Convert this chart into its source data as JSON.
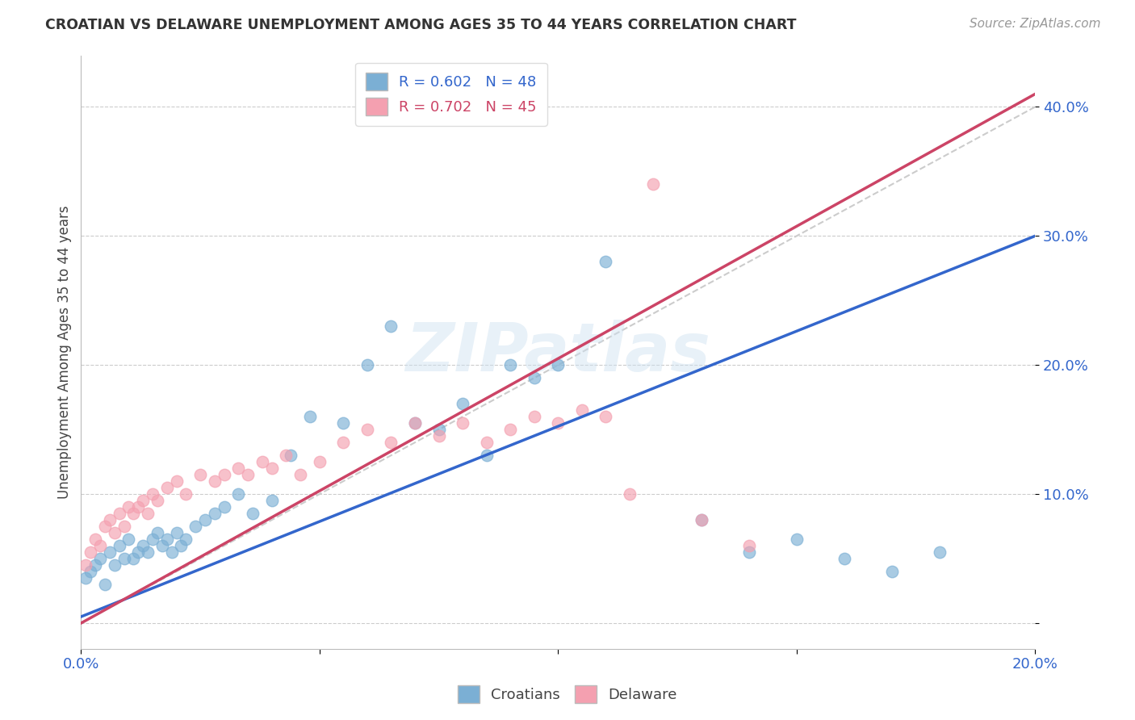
{
  "title": "CROATIAN VS DELAWARE UNEMPLOYMENT AMONG AGES 35 TO 44 YEARS CORRELATION CHART",
  "source": "Source: ZipAtlas.com",
  "ylabel": "Unemployment Among Ages 35 to 44 years",
  "xlim": [
    0.0,
    0.2
  ],
  "ylim": [
    -0.02,
    0.44
  ],
  "xticks": [
    0.0,
    0.05,
    0.1,
    0.15,
    0.2
  ],
  "yticks": [
    0.0,
    0.1,
    0.2,
    0.3,
    0.4
  ],
  "xtick_labels": [
    "0.0%",
    "",
    "",
    "",
    "20.0%"
  ],
  "ytick_labels": [
    "",
    "10.0%",
    "20.0%",
    "30.0%",
    "40.0%"
  ],
  "croatians_color": "#7bafd4",
  "delaware_color": "#f4a0b0",
  "croatians_line_color": "#3366cc",
  "delaware_line_color": "#cc4466",
  "legend_label_1": "R = 0.602   N = 48",
  "legend_label_2": "R = 0.702   N = 45",
  "legend_text_color_1": "#3366cc",
  "legend_text_color_2": "#cc4466",
  "watermark": "ZIPatlas",
  "trendline_cr_x0": 0.0,
  "trendline_cr_y0": 0.005,
  "trendline_cr_x1": 0.2,
  "trendline_cr_y1": 0.3,
  "trendline_de_x0": 0.0,
  "trendline_de_y0": 0.0,
  "trendline_de_x1": 0.2,
  "trendline_de_y1": 0.41,
  "background_color": "#ffffff",
  "grid_color": "#cccccc",
  "cr_x": [
    0.001,
    0.002,
    0.003,
    0.004,
    0.005,
    0.006,
    0.007,
    0.008,
    0.009,
    0.01,
    0.011,
    0.012,
    0.013,
    0.014,
    0.015,
    0.016,
    0.017,
    0.018,
    0.019,
    0.02,
    0.021,
    0.022,
    0.024,
    0.026,
    0.028,
    0.03,
    0.033,
    0.036,
    0.04,
    0.044,
    0.048,
    0.055,
    0.06,
    0.065,
    0.07,
    0.075,
    0.08,
    0.085,
    0.09,
    0.095,
    0.1,
    0.11,
    0.13,
    0.14,
    0.15,
    0.16,
    0.17,
    0.18
  ],
  "cr_y": [
    0.035,
    0.04,
    0.045,
    0.05,
    0.03,
    0.055,
    0.045,
    0.06,
    0.05,
    0.065,
    0.05,
    0.055,
    0.06,
    0.055,
    0.065,
    0.07,
    0.06,
    0.065,
    0.055,
    0.07,
    0.06,
    0.065,
    0.075,
    0.08,
    0.085,
    0.09,
    0.1,
    0.085,
    0.095,
    0.13,
    0.16,
    0.155,
    0.2,
    0.23,
    0.155,
    0.15,
    0.17,
    0.13,
    0.2,
    0.19,
    0.2,
    0.28,
    0.08,
    0.055,
    0.065,
    0.05,
    0.04,
    0.055
  ],
  "de_x": [
    0.001,
    0.002,
    0.003,
    0.004,
    0.005,
    0.006,
    0.007,
    0.008,
    0.009,
    0.01,
    0.011,
    0.012,
    0.013,
    0.014,
    0.015,
    0.016,
    0.018,
    0.02,
    0.022,
    0.025,
    0.028,
    0.03,
    0.033,
    0.035,
    0.038,
    0.04,
    0.043,
    0.046,
    0.05,
    0.055,
    0.06,
    0.065,
    0.07,
    0.075,
    0.08,
    0.085,
    0.09,
    0.095,
    0.1,
    0.105,
    0.11,
    0.115,
    0.12,
    0.13,
    0.14
  ],
  "de_y": [
    0.045,
    0.055,
    0.065,
    0.06,
    0.075,
    0.08,
    0.07,
    0.085,
    0.075,
    0.09,
    0.085,
    0.09,
    0.095,
    0.085,
    0.1,
    0.095,
    0.105,
    0.11,
    0.1,
    0.115,
    0.11,
    0.115,
    0.12,
    0.115,
    0.125,
    0.12,
    0.13,
    0.115,
    0.125,
    0.14,
    0.15,
    0.14,
    0.155,
    0.145,
    0.155,
    0.14,
    0.15,
    0.16,
    0.155,
    0.165,
    0.16,
    0.1,
    0.34,
    0.08,
    0.06
  ]
}
